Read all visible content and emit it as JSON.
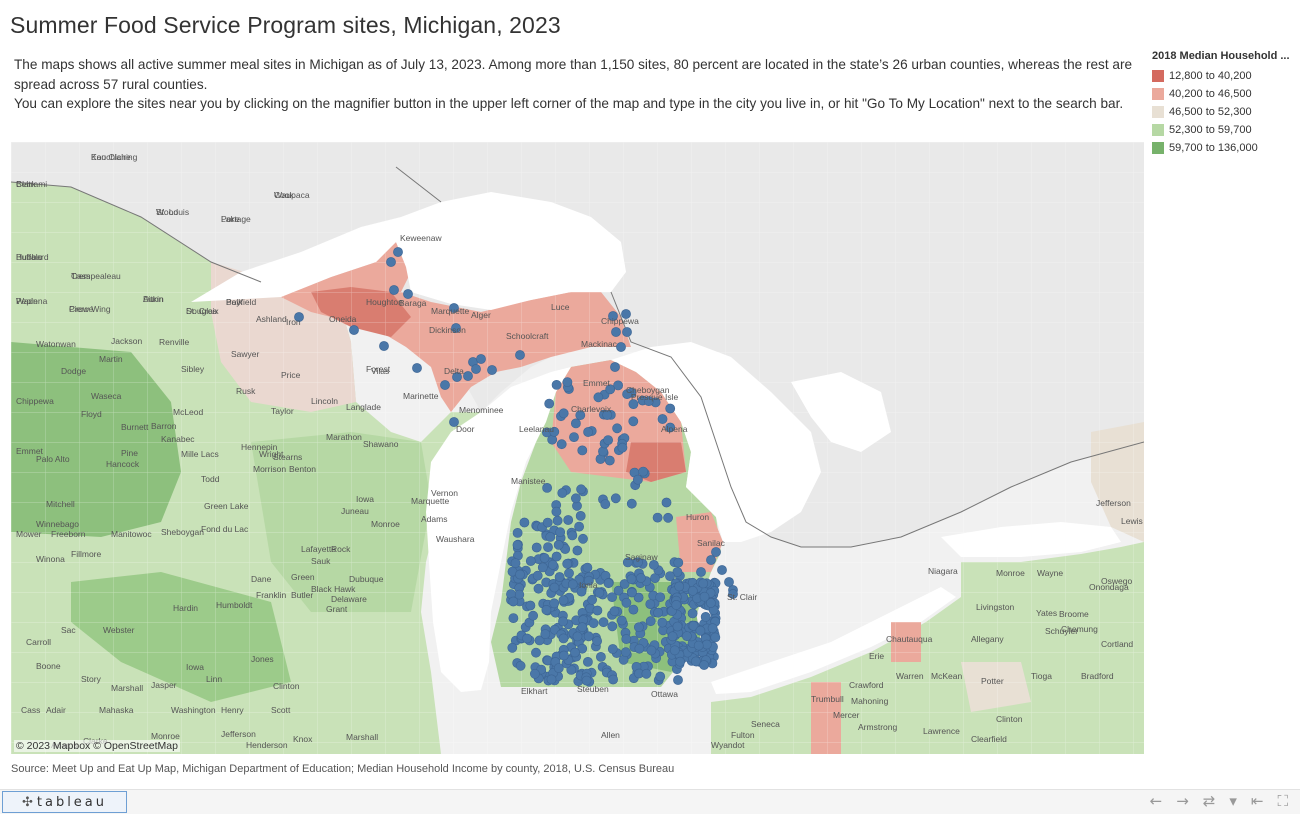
{
  "title": "Summer Food Service Program sites, Michigan, 2023",
  "description": [
    "The maps shows all active summer meal sites in Michigan as of July 13, 2023. Among more than 1,150 sites, 80 percent are located in the state’s 26 urban counties, whereas the rest are spread across 57 rural counties.",
    "You can explore the sites near you by clicking on the magnifier button in the upper left corner of the map and type in the city you live in, or hit \"Go To My Location\" next to the search bar."
  ],
  "legend": {
    "title": "2018 Median Household ...",
    "items": [
      {
        "label": "12,800 to 40,200",
        "color": "#d46a5f"
      },
      {
        "label": "40,200 to 46,500",
        "color": "#eba99c"
      },
      {
        "label": "46,500 to 52,300",
        "color": "#e8e0d4"
      },
      {
        "label": "52,300 to 59,700",
        "color": "#b6d8a4"
      },
      {
        "label": "59,700 to 136,000",
        "color": "#77b26b"
      }
    ]
  },
  "map": {
    "site_color": "#4a77a8",
    "water_color": "#ffffff",
    "canada_color": "#e6e6e6",
    "attribution": "© 2023 Mapbox  © OpenStreetMap",
    "place_labels": [
      "Koochiching",
      "Beltrami",
      "St. Louis",
      "Lake",
      "Cook",
      "Cass",
      "Hubbard",
      "Wadena",
      "Crow Wing",
      "Aitkin",
      "Douglas",
      "Bayfield",
      "Ashland",
      "Iron",
      "Keweenaw",
      "Houghton",
      "Baraga",
      "Marquette",
      "Alger",
      "Luce",
      "Chippewa",
      "Schoolcraft",
      "Mackinac",
      "Delta",
      "Dickinson",
      "Menominee",
      "Marinette",
      "Forest",
      "Vilas",
      "Oneida",
      "Price",
      "Sawyer",
      "Rusk",
      "Taylor",
      "Lincoln",
      "Langlade",
      "Marathon",
      "Shawano",
      "Door",
      "Emmet",
      "Cheboygan",
      "Presque Isle",
      "Charlevoix",
      "Alpena",
      "Leelanau",
      "Manistee",
      "Huron",
      "Sanilac",
      "St. Clair",
      "Saginaw",
      "Ionia",
      "Elkhart",
      "Steuben",
      "Ottawa",
      "Erie",
      "Niagara",
      "Monroe",
      "Wayne",
      "Livingston",
      "Crawford",
      "Warren",
      "McKean",
      "Potter",
      "Tioga",
      "Bradford",
      "Chautauqua",
      "Allegany",
      "Jefferson",
      "Lewis",
      "Oswego",
      "Onondaga",
      "Cortland",
      "Broome",
      "Yates",
      "Schuyler",
      "Chemung",
      "Clinton",
      "Clearfield",
      "Mercer",
      "Mahoning",
      "Trumbull",
      "Lawrence",
      "Armstrong",
      "Seneca",
      "Fulton",
      "Allen",
      "Wyandot",
      "Marshall",
      "Knox",
      "Henderson",
      "Adams",
      "Clarke",
      "Monroe",
      "Jefferson",
      "Cass",
      "Adair",
      "Mahaska",
      "Washington",
      "Henry",
      "Scott",
      "Clinton",
      "Jones",
      "Linn",
      "Iowa",
      "Jasper",
      "Marshall",
      "Story",
      "Boone",
      "Carroll",
      "Sac",
      "Webster",
      "Hardin",
      "Humboldt",
      "Franklin",
      "Butler",
      "Black Hawk",
      "Delaware",
      "Dubuque",
      "Grant",
      "Lafayette",
      "Rock",
      "Green",
      "Dane",
      "Sauk",
      "Iowa",
      "Vernon",
      "Monroe",
      "Juneau",
      "Adams",
      "Waushara",
      "Marquette",
      "Green Lake",
      "Fond du Lac",
      "Sheboygan",
      "Manitowoc",
      "Winona",
      "Fillmore",
      "Freeborn",
      "Mower",
      "Winnebago",
      "Mitchell",
      "Emmet",
      "Palo Alto",
      "Hancock",
      "Floyd",
      "Waseca",
      "Dodge",
      "Watonwan",
      "Martin",
      "Jackson",
      "Renville",
      "Sibley",
      "McLeod",
      "Hennepin",
      "Wright",
      "Stearns",
      "Benton",
      "Morrison",
      "Todd",
      "Mille Lacs",
      "Kanabec",
      "Pine",
      "Burnett",
      "Barron",
      "Chippewa",
      "Eau Claire",
      "Clark",
      "Wood",
      "Portage",
      "Waupaca",
      "Trempealeau",
      "Buffalo",
      "Pepin",
      "Pierce",
      "Dunn",
      "St. Croix",
      "Polk"
    ]
  },
  "source": "Source: Meet Up and Eat Up Map, Michigan Department of Education; Median Household Income by county, 2018, U.S. Census Bureau",
  "footer": {
    "logo": "+ableau",
    "controls": [
      "undo-icon",
      "redo-icon",
      "revert-icon",
      "dropdown-icon",
      "reset-icon",
      "fullscreen-icon"
    ]
  }
}
